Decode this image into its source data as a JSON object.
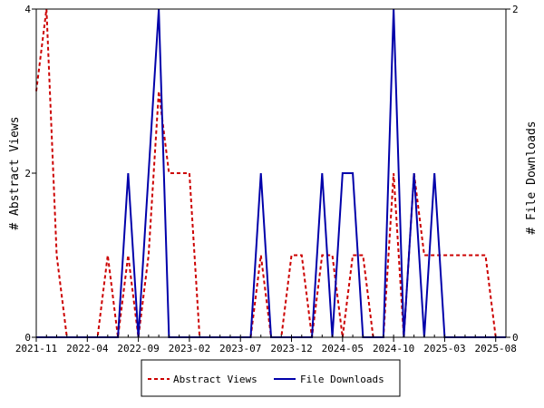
{
  "chart_data": {
    "type": "line",
    "title": "",
    "xlabel": "",
    "ylabel_left": "# Abstract Views",
    "ylabel_right": "# File Downloads",
    "x_tick_labels": [
      "2021-11",
      "2022-04",
      "2022-09",
      "2023-02",
      "2023-07",
      "2023-12",
      "2024-05",
      "2024-10",
      "2025-03",
      "2025-08"
    ],
    "y_left_ticks": [
      "0",
      "2",
      "4"
    ],
    "y_right_ticks": [
      "0",
      "2"
    ],
    "ylim_left": [
      0,
      4
    ],
    "ylim_right": [
      0,
      2
    ],
    "x_months": [
      0,
      46
    ],
    "legend_placement": "bottom-center",
    "series": [
      {
        "name": "Abstract Views",
        "axis": "left",
        "color": "#cc0000",
        "style": "dashed",
        "points": [
          [
            0,
            3
          ],
          [
            1,
            4
          ],
          [
            2,
            1
          ],
          [
            3,
            0
          ],
          [
            4,
            0
          ],
          [
            5,
            0
          ],
          [
            6,
            0
          ],
          [
            7,
            1
          ],
          [
            8,
            0
          ],
          [
            9,
            1
          ],
          [
            10,
            0
          ],
          [
            11,
            1
          ],
          [
            12,
            3
          ],
          [
            13,
            2
          ],
          [
            14,
            2
          ],
          [
            15,
            2
          ],
          [
            16,
            0
          ],
          [
            17,
            0
          ],
          [
            18,
            0
          ],
          [
            19,
            0
          ],
          [
            20,
            0
          ],
          [
            21,
            0
          ],
          [
            22,
            1
          ],
          [
            23,
            0
          ],
          [
            24,
            0
          ],
          [
            25,
            1
          ],
          [
            26,
            1
          ],
          [
            27,
            0
          ],
          [
            28,
            1
          ],
          [
            29,
            1
          ],
          [
            30,
            0
          ],
          [
            31,
            1
          ],
          [
            32,
            1
          ],
          [
            33,
            0
          ],
          [
            34,
            0
          ],
          [
            35,
            2
          ],
          [
            36,
            0
          ],
          [
            37,
            2
          ],
          [
            38,
            1
          ],
          [
            39,
            1
          ],
          [
            40,
            1
          ],
          [
            41,
            1
          ],
          [
            42,
            1
          ],
          [
            43,
            1
          ],
          [
            44,
            1
          ],
          [
            45,
            0
          ]
        ]
      },
      {
        "name": "File Downloads",
        "axis": "right",
        "color": "#0000aa",
        "style": "solid",
        "points": [
          [
            0,
            0
          ],
          [
            1,
            0
          ],
          [
            2,
            0
          ],
          [
            3,
            0
          ],
          [
            4,
            0
          ],
          [
            5,
            0
          ],
          [
            6,
            0
          ],
          [
            7,
            0
          ],
          [
            8,
            0
          ],
          [
            9,
            1
          ],
          [
            10,
            0
          ],
          [
            11,
            1
          ],
          [
            12,
            2
          ],
          [
            13,
            0
          ],
          [
            14,
            0
          ],
          [
            15,
            0
          ],
          [
            16,
            0
          ],
          [
            17,
            0
          ],
          [
            18,
            0
          ],
          [
            19,
            0
          ],
          [
            20,
            0
          ],
          [
            21,
            0
          ],
          [
            22,
            1
          ],
          [
            23,
            0
          ],
          [
            24,
            0
          ],
          [
            25,
            0
          ],
          [
            26,
            0
          ],
          [
            27,
            0
          ],
          [
            28,
            1
          ],
          [
            29,
            0
          ],
          [
            30,
            1
          ],
          [
            31,
            1
          ],
          [
            32,
            0
          ],
          [
            33,
            0
          ],
          [
            34,
            0
          ],
          [
            35,
            2
          ],
          [
            36,
            0
          ],
          [
            37,
            1
          ],
          [
            38,
            0
          ],
          [
            39,
            1
          ],
          [
            40,
            0
          ],
          [
            41,
            0
          ],
          [
            42,
            0
          ],
          [
            43,
            0
          ],
          [
            44,
            0
          ],
          [
            45,
            0
          ],
          [
            46,
            0
          ]
        ]
      }
    ]
  }
}
